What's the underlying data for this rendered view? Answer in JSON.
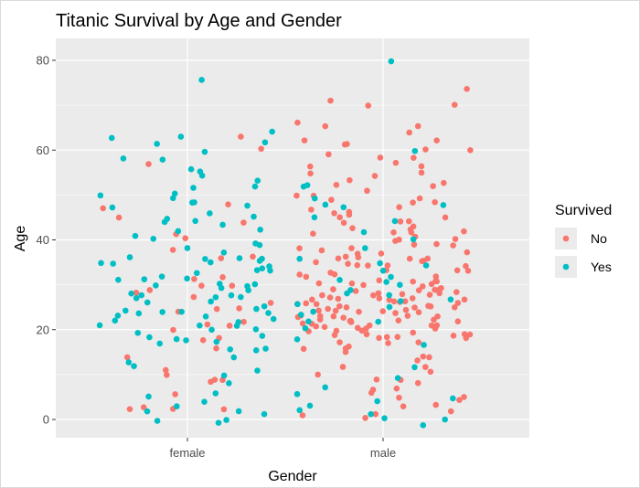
{
  "chart_data": {
    "type": "scatter",
    "title": "Titanic Survival by Age and Gender",
    "xlabel": "Gender",
    "ylabel": "Age",
    "categories": [
      "female",
      "male"
    ],
    "jitter": 0.45,
    "ylim": [
      -4,
      84
    ],
    "yticks": [
      0,
      20,
      40,
      60,
      80
    ],
    "grid": true,
    "legend": {
      "title": "Survived",
      "placement": "right",
      "entries": [
        "No",
        "Yes"
      ]
    },
    "colors": {
      "No": "#F8766D",
      "Yes": "#00BFC4",
      "panel": "#EBEBEB",
      "grid": "#FFFFFF"
    },
    "series": [
      {
        "name": "No",
        "category": "female",
        "ages": [
          9,
          8,
          18,
          2,
          2,
          21,
          25,
          30,
          28,
          36,
          45,
          48,
          57,
          60,
          20,
          22,
          14,
          11,
          26,
          30,
          41,
          44,
          27,
          32,
          18,
          36,
          9,
          10,
          2,
          6,
          3,
          25,
          29,
          38,
          63,
          31,
          21,
          47,
          24,
          16,
          40
        ]
      },
      {
        "name": "Yes",
        "category": "female",
        "ages": [
          76,
          62,
          50,
          45,
          44,
          55,
          52,
          48,
          60,
          58,
          63,
          61,
          54,
          49,
          47,
          42,
          40,
          39,
          36,
          35,
          33,
          30,
          29,
          28,
          27,
          26,
          24,
          23,
          22,
          21,
          20,
          19,
          18,
          17,
          16,
          15,
          14,
          13,
          12,
          11,
          10,
          5,
          4,
          3,
          2,
          1,
          0,
          -1,
          38,
          35,
          31,
          33,
          36,
          24,
          22,
          19,
          24,
          27,
          30,
          32,
          34,
          37,
          41,
          43,
          46,
          50,
          53,
          56,
          64,
          63,
          58,
          35,
          31,
          28,
          26,
          23,
          22,
          18,
          27,
          34,
          29,
          31,
          25,
          21,
          17,
          24,
          30,
          36,
          39,
          44,
          48,
          52,
          28,
          35,
          2,
          0,
          6,
          8,
          16,
          20,
          24,
          33,
          36,
          42,
          45,
          48,
          30,
          25,
          21,
          18
        ]
      },
      {
        "name": "No",
        "category": "male",
        "ages": [
          71,
          70,
          66,
          64,
          62,
          61,
          60,
          59,
          58,
          57,
          56,
          55,
          54,
          53,
          52,
          51,
          50,
          49,
          48,
          47,
          46,
          45,
          44,
          43,
          42,
          41,
          40,
          39,
          38,
          37,
          36,
          35,
          34,
          33,
          32,
          31,
          30,
          29,
          28,
          27,
          26,
          25,
          24,
          23,
          22,
          21,
          20,
          19,
          18,
          17,
          16,
          15,
          14,
          13,
          12,
          11,
          10,
          9,
          8,
          7,
          6,
          5,
          4,
          3,
          2,
          1,
          0,
          74,
          70,
          65,
          61,
          56,
          52,
          48,
          46,
          44,
          42,
          40,
          38,
          36,
          35,
          34,
          33,
          32,
          31,
          30,
          30,
          29,
          29,
          28,
          28,
          27,
          27,
          26,
          26,
          25,
          25,
          24,
          24,
          23,
          23,
          22,
          22,
          21,
          21,
          20,
          20,
          19,
          19,
          18,
          18,
          17,
          17,
          16,
          16,
          45,
          43,
          41,
          39,
          37,
          35,
          33,
          31,
          29,
          27,
          25,
          23,
          21,
          19,
          28,
          26,
          24,
          22,
          20,
          30,
          32,
          34,
          36,
          38,
          40,
          42,
          44,
          47,
          50,
          53,
          58,
          62,
          25,
          26,
          27,
          28,
          29,
          24,
          23,
          22,
          21,
          20,
          19,
          18,
          31,
          32,
          33,
          34,
          35,
          36,
          37,
          28,
          27,
          26,
          25,
          24,
          23,
          22,
          21,
          20,
          19,
          30,
          29,
          28,
          27,
          26,
          25,
          24,
          23,
          22,
          21,
          36,
          39,
          42,
          46,
          49,
          55,
          60,
          65,
          14,
          12,
          9,
          7,
          5,
          3,
          1
        ]
      },
      {
        "name": "Yes",
        "category": "male",
        "ages": [
          80,
          49,
          47,
          45,
          42,
          38,
          36,
          35,
          33,
          32,
          31,
          30,
          29,
          28,
          27,
          26,
          25,
          24,
          23,
          22,
          20,
          18,
          12,
          9,
          7,
          5,
          4,
          2,
          0,
          -1,
          52,
          48,
          44,
          40,
          34,
          31,
          28,
          26,
          22,
          17,
          6,
          3,
          1,
          0,
          60,
          52,
          48
        ]
      }
    ]
  }
}
